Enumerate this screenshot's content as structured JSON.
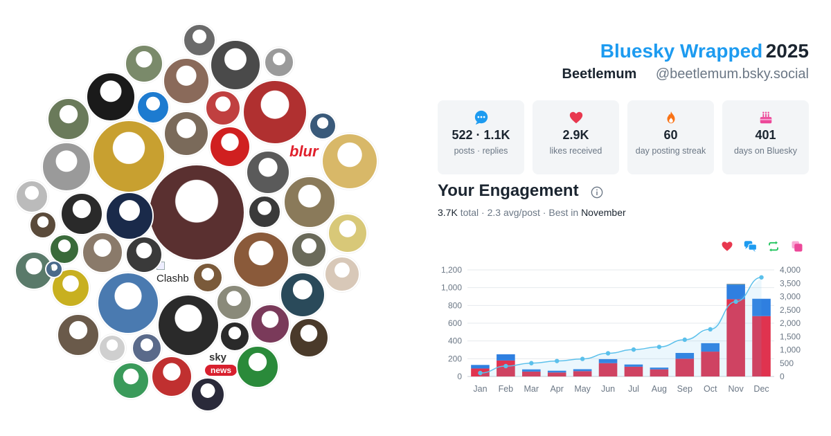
{
  "header": {
    "title_brand": "Bluesky Wrapped",
    "title_year": "2025",
    "display_name": "Beetlemum",
    "handle": "@beetlemum.bsky.social"
  },
  "stats": [
    {
      "icon": "speech-bubble-icon",
      "value": "522 · 1.1K",
      "label": "posts · replies",
      "color": "#1d9bf0"
    },
    {
      "icon": "heart-icon",
      "value": "2.9K",
      "label": "likes received",
      "color": "#e8384f"
    },
    {
      "icon": "flame-icon",
      "value": "60",
      "label": "day posting streak",
      "color": "#f97316"
    },
    {
      "icon": "cake-icon",
      "value": "401",
      "label": "days on Bluesky",
      "color": "#ec4899"
    }
  ],
  "engagement": {
    "title": "Your Engagement",
    "total": "3.7K",
    "total_word": "total",
    "avg": "2.3 avg/post",
    "best_prefix": "Best in",
    "best_month": "November"
  },
  "legend": [
    {
      "icon": "heart-icon",
      "color": "#e8384f"
    },
    {
      "icon": "reply-icon",
      "color": "#1d9bf0"
    },
    {
      "icon": "repost-icon",
      "color": "#22c55e"
    },
    {
      "icon": "quote-icon",
      "color": "#ec4899"
    }
  ],
  "cluster": {
    "broken_image_alt": "Clashb",
    "logos": {
      "blur": "blur",
      "sky": "sky",
      "news": "news"
    }
  },
  "chart_data": {
    "type": "bar",
    "categories": [
      "Jan",
      "Feb",
      "Mar",
      "Apr",
      "May",
      "Jun",
      "Jul",
      "Aug",
      "Sep",
      "Oct",
      "Nov",
      "Dec"
    ],
    "series": [
      {
        "values": [
          90,
          180,
          55,
          45,
          60,
          150,
          110,
          80,
          200,
          280,
          870,
          680
        ],
        "color": "#e0334f"
      },
      {
        "values": [
          40,
          70,
          25,
          20,
          22,
          45,
          25,
          20,
          65,
          95,
          165,
          195
        ],
        "color": "#2f7fe0"
      },
      {
        "values": [
          0,
          0,
          0,
          0,
          0,
          0,
          0,
          0,
          0,
          0,
          5,
          0
        ],
        "color": "#1eb980"
      },
      {
        "values": [
          0,
          0,
          0,
          0,
          0,
          0,
          0,
          0,
          0,
          0,
          3,
          0
        ],
        "color": "#ec4899"
      },
      {
        "values": [
          130,
          390,
          500,
          580,
          660,
          870,
          1010,
          1110,
          1380,
          1770,
          2810,
          3720
        ],
        "color": "#5bc0eb",
        "type": "line",
        "axis": "right"
      }
    ],
    "ylim": [
      0,
      1200
    ],
    "yticks": [
      0,
      200,
      400,
      600,
      800,
      "1,000",
      "1,200"
    ],
    "y2lim": [
      0,
      4000
    ],
    "y2ticks": [
      0,
      500,
      "1,000",
      "1,500",
      "2,000",
      "2,500",
      "3,000",
      "3,500",
      "4,000"
    ],
    "grid": true
  }
}
